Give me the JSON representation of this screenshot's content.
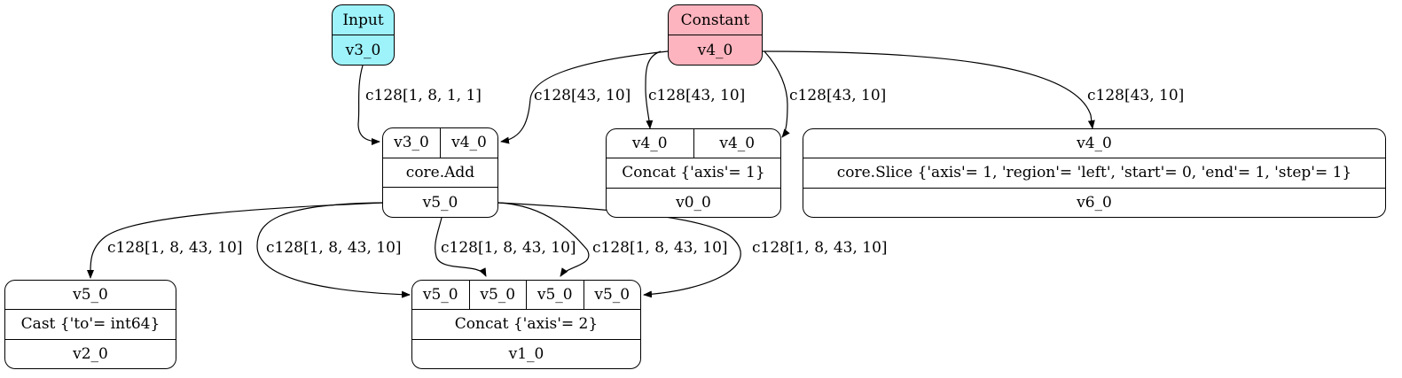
{
  "colors": {
    "input_fill": "#9ef3fb",
    "constant_fill": "#feb4be",
    "op_fill": "#ffffff",
    "stroke": "#000000"
  },
  "nodes": {
    "input": {
      "title": "Input",
      "output": "v3_0"
    },
    "constant": {
      "title": "Constant",
      "output": "v4_0"
    },
    "add": {
      "inputs": [
        "v3_0",
        "v4_0"
      ],
      "op": "core.Add",
      "output": "v5_0"
    },
    "concat_axis1": {
      "inputs": [
        "v4_0",
        "v4_0"
      ],
      "op": "Concat {'axis'= 1}",
      "output": "v0_0"
    },
    "slice": {
      "inputs": [
        "v4_0"
      ],
      "op": "core.Slice {'axis'= 1, 'region'= 'left', 'start'= 0, 'end'= 1, 'step'= 1}",
      "output": "v6_0"
    },
    "cast": {
      "inputs": [
        "v5_0"
      ],
      "op": "Cast {'to'= int64}",
      "output": "v2_0"
    },
    "concat_axis2": {
      "inputs": [
        "v5_0",
        "v5_0",
        "v5_0",
        "v5_0"
      ],
      "op": "Concat {'axis'= 2}",
      "output": "v1_0"
    }
  },
  "edges": [
    {
      "id": "input-to-add",
      "label": "c128[1, 8, 1, 1]"
    },
    {
      "id": "constant-to-add",
      "label": "c128[43, 10]"
    },
    {
      "id": "constant-to-concat1-a",
      "label": "c128[43, 10]"
    },
    {
      "id": "constant-to-concat1-b",
      "label": "c128[43, 10]"
    },
    {
      "id": "constant-to-slice",
      "label": "c128[43, 10]"
    },
    {
      "id": "add-to-cast",
      "label": "c128[1, 8, 43, 10]"
    },
    {
      "id": "add-to-concat2-a",
      "label": "c128[1, 8, 43, 10]"
    },
    {
      "id": "add-to-concat2-b",
      "label": "c128[1, 8, 43, 10]"
    },
    {
      "id": "add-to-concat2-c",
      "label": "c128[1, 8, 43, 10]"
    },
    {
      "id": "add-to-concat2-d",
      "label": "c128[1, 8, 43, 10]"
    }
  ]
}
